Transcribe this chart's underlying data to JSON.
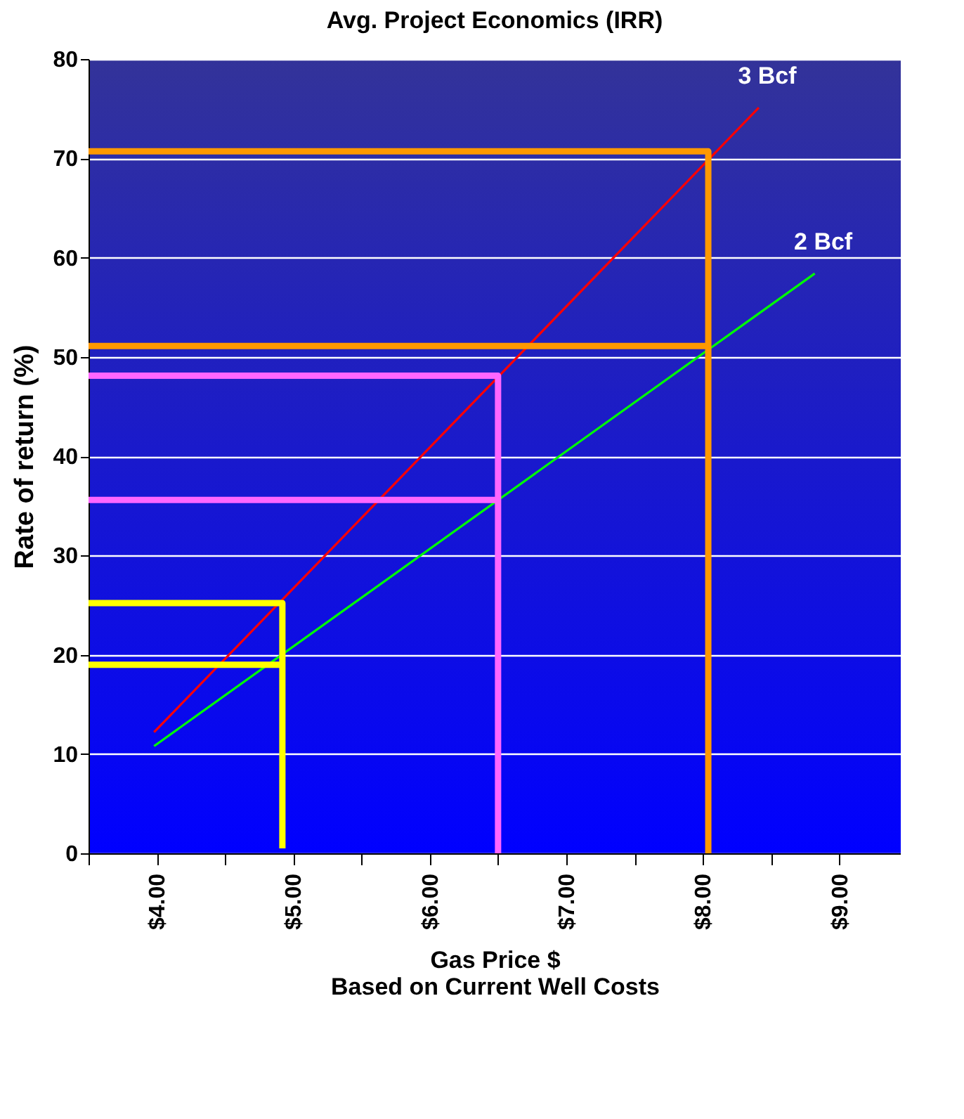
{
  "chart_data": {
    "type": "line",
    "title": "Avg. Project Economics (IRR)",
    "xlabel": "Gas Price $\nBased on Current Well Costs",
    "ylabel": "Rate of return (%)",
    "xlim": [
      3.5,
      9.45
    ],
    "ylim": [
      0,
      80
    ],
    "xticks": [
      {
        "value": 3.5,
        "label": null
      },
      {
        "value": 4,
        "label": "$4.00"
      },
      {
        "value": 4.5,
        "label": null
      },
      {
        "value": 5,
        "label": "$5.00"
      },
      {
        "value": 5.5,
        "label": null
      },
      {
        "value": 6,
        "label": "$6.00"
      },
      {
        "value": 6.5,
        "label": null
      },
      {
        "value": 7,
        "label": "$7.00"
      },
      {
        "value": 7.5,
        "label": null
      },
      {
        "value": 8,
        "label": "$8.00"
      },
      {
        "value": 8.5,
        "label": null
      },
      {
        "value": 9,
        "label": "$9.00"
      }
    ],
    "yticks": [
      0,
      10,
      20,
      30,
      40,
      50,
      60,
      70,
      80
    ],
    "grid": "y",
    "series": [
      {
        "name": "3 Bcf",
        "color": "#ff0000",
        "x": [
          3.98,
          8.41
        ],
        "values": [
          12.2,
          75.1
        ]
      },
      {
        "name": "2 Bcf",
        "color": "#00ff00",
        "x": [
          3.98,
          8.82
        ],
        "values": [
          10.8,
          58.4
        ]
      },
      {
        "color": "#ffff00",
        "x": [
          3.5,
          4.92,
          4.92
        ],
        "values": [
          25.2,
          25.2,
          0.5
        ]
      },
      {
        "color": "#ffff00",
        "x": [
          3.5,
          4.92
        ],
        "values": [
          19,
          19
        ]
      },
      {
        "color": "#ff66ff",
        "x": [
          3.5,
          6.5,
          6.5
        ],
        "values": [
          48.1,
          48.1,
          0
        ]
      },
      {
        "color": "#ff66ff",
        "x": [
          3.5,
          6.5
        ],
        "values": [
          35.6,
          35.6
        ]
      },
      {
        "color": "#ff9900",
        "x": [
          3.5,
          8.04,
          8.04
        ],
        "values": [
          70.7,
          70.7,
          0
        ]
      },
      {
        "color": "#ff9900",
        "x": [
          3.5,
          8.04
        ],
        "values": [
          51.1,
          51.1
        ]
      }
    ]
  }
}
